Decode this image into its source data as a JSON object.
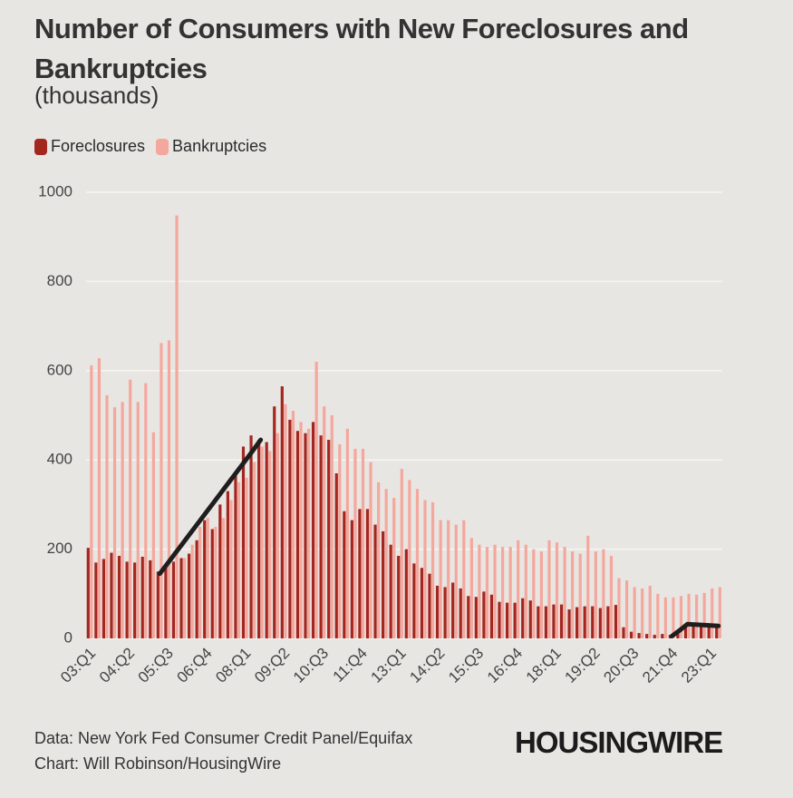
{
  "chart_data": {
    "type": "bar",
    "title": "Number of Consumers with New Foreclosures and Bankruptcies",
    "subtitle": "(thousands)",
    "source": "Data: New York Fed Consumer Credit Panel/Equifax",
    "credit": "Chart: Will Robinson/HousingWire",
    "logo": "HOUSINGWIRE",
    "legend": "top-left",
    "grid": true,
    "ylim": [
      0,
      1000
    ],
    "yticks": [
      0,
      200,
      400,
      600,
      800,
      1000
    ],
    "categories": [
      "03:Q1",
      null,
      null,
      null,
      null,
      "04:Q2",
      null,
      null,
      null,
      null,
      "05:Q3",
      null,
      null,
      null,
      null,
      "06:Q4",
      null,
      null,
      null,
      null,
      "08:Q1",
      null,
      null,
      null,
      null,
      "09:Q2",
      null,
      null,
      null,
      null,
      "10:Q3",
      null,
      null,
      null,
      null,
      "11:Q4",
      null,
      null,
      null,
      null,
      "13:Q1",
      null,
      null,
      null,
      null,
      "14:Q2",
      null,
      null,
      null,
      null,
      "15:Q3",
      null,
      null,
      null,
      null,
      "16:Q4",
      null,
      null,
      null,
      null,
      "18:Q1",
      null,
      null,
      null,
      null,
      "19:Q2",
      null,
      null,
      null,
      null,
      "20:Q3",
      null,
      null,
      null,
      null,
      "21:Q4",
      null,
      null,
      null,
      null,
      "23:Q1",
      null
    ],
    "series": [
      {
        "name": "Foreclosures",
        "color": "#a3261f",
        "values": [
          203,
          170,
          178,
          192,
          185,
          172,
          170,
          183,
          175,
          150,
          165,
          172,
          180,
          190,
          220,
          265,
          245,
          300,
          330,
          365,
          430,
          455,
          445,
          440,
          520,
          565,
          490,
          465,
          460,
          485,
          455,
          445,
          370,
          285,
          265,
          290,
          290,
          255,
          240,
          210,
          185,
          200,
          168,
          158,
          145,
          118,
          115,
          125,
          112,
          95,
          93,
          105,
          98,
          82,
          80,
          80,
          90,
          85,
          72,
          72,
          76,
          76,
          65,
          70,
          72,
          72,
          68,
          72,
          75,
          25,
          15,
          12,
          10,
          8,
          10,
          8,
          15,
          25,
          30,
          32,
          30,
          30
        ]
      },
      {
        "name": "Bankruptcies",
        "color": "#f4a79d",
        "values": [
          612,
          628,
          545,
          518,
          530,
          580,
          530,
          572,
          462,
          662,
          668,
          948,
          180,
          210,
          250,
          270,
          250,
          270,
          310,
          350,
          360,
          395,
          430,
          420,
          460,
          525,
          510,
          485,
          470,
          620,
          520,
          500,
          435,
          470,
          425,
          425,
          395,
          350,
          335,
          315,
          380,
          355,
          335,
          310,
          305,
          265,
          265,
          255,
          265,
          225,
          210,
          205,
          210,
          205,
          205,
          220,
          210,
          200,
          195,
          220,
          215,
          205,
          195,
          190,
          230,
          195,
          200,
          185,
          135,
          130,
          115,
          112,
          118,
          100,
          92,
          92,
          95,
          100,
          98,
          102,
          112,
          115
        ]
      }
    ],
    "trend_lines": [
      {
        "color": "#1e1e1e",
        "values": [
          null,
          null,
          null,
          null,
          null,
          null,
          null,
          null,
          null,
          145,
          168,
          191,
          214,
          237,
          260,
          283,
          306,
          329,
          352,
          375,
          398,
          421,
          445,
          null,
          null,
          null,
          null,
          null,
          null,
          null,
          null,
          null,
          null,
          null,
          null,
          null,
          null,
          null,
          null,
          null,
          null,
          null,
          null,
          null,
          null,
          null,
          null,
          null,
          null,
          null,
          null,
          null,
          null,
          null,
          null,
          null,
          null,
          null,
          null,
          null,
          null,
          null,
          null,
          null,
          null,
          null,
          null,
          null,
          null,
          null,
          null,
          null,
          null,
          null,
          null,
          5,
          18,
          32,
          31,
          30,
          29,
          28
        ]
      }
    ]
  }
}
